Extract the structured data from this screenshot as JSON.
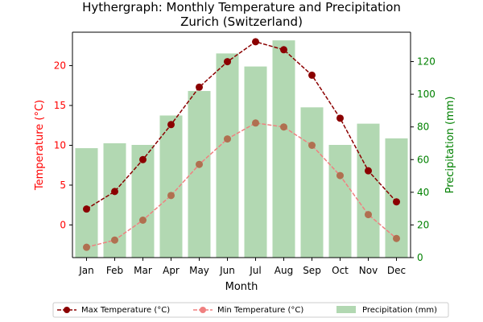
{
  "chart_data": {
    "type": "bar+line",
    "title_line1": "Hythergraph: Monthly Temperature and Precipitation",
    "title_line2": "Zurich (Switzerland)",
    "xlabel": "Month",
    "ylabel_left": "Temperature (°C)",
    "ylabel_right": "Precipitation (mm)",
    "categories": [
      "Jan",
      "Feb",
      "Mar",
      "Apr",
      "May",
      "Jun",
      "Jul",
      "Aug",
      "Sep",
      "Oct",
      "Nov",
      "Dec"
    ],
    "ylim_left": [
      -4.1,
      24.2
    ],
    "ylim_right": [
      0,
      138
    ],
    "left_ticks": [
      0,
      5,
      10,
      15,
      20
    ],
    "right_ticks": [
      0,
      20,
      40,
      60,
      80,
      100,
      120
    ],
    "series": [
      {
        "name": "Max Temperature (°C)",
        "axis": "left",
        "kind": "line",
        "color": "#8b0000",
        "values": [
          2.0,
          4.2,
          8.2,
          12.6,
          17.3,
          20.5,
          23.0,
          22.0,
          18.8,
          13.4,
          6.8,
          2.9
        ]
      },
      {
        "name": "Min Temperature (°C)",
        "axis": "left",
        "kind": "line",
        "color": "#f08080",
        "values": [
          -2.8,
          -1.9,
          0.6,
          3.7,
          7.6,
          10.8,
          12.8,
          12.3,
          10.0,
          6.2,
          1.3,
          -1.7
        ]
      },
      {
        "name": "Precipitation (mm)",
        "axis": "right",
        "kind": "bar",
        "color": "#b2d8b2",
        "values": [
          67,
          70,
          69,
          87,
          102,
          125,
          117,
          133,
          92,
          69,
          82,
          73
        ]
      }
    ],
    "legend_position": "bottom-center"
  }
}
